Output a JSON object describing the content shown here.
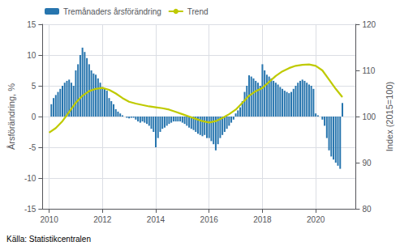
{
  "chart_data": {
    "type": "bar",
    "ylabel": "Årsförändring, %",
    "y2label": "Index (2015=100)",
    "annotation": "Källa: Statistikcentralen",
    "xlim": [
      2009.75,
      2021.5
    ],
    "xticks": [
      2010,
      2012,
      2014,
      2016,
      2018,
      2020
    ],
    "ylim": [
      -15,
      15
    ],
    "yticks": [
      -15,
      -10,
      -5,
      0,
      5,
      10,
      15
    ],
    "y2lim": [
      80,
      120
    ],
    "y2ticks": [
      80,
      90,
      100,
      110,
      120
    ],
    "grid": true,
    "legend": "upper left",
    "series": [
      {
        "name": "Tremånaders årsförändring",
        "type": "bar",
        "color": "#2775ae",
        "x": [
          2010.083,
          2010.167,
          2010.25,
          2010.333,
          2010.417,
          2010.5,
          2010.583,
          2010.667,
          2010.75,
          2010.833,
          2010.917,
          2011.0,
          2011.083,
          2011.167,
          2011.25,
          2011.333,
          2011.417,
          2011.5,
          2011.583,
          2011.667,
          2011.75,
          2011.833,
          2011.917,
          2012.0,
          2012.083,
          2012.167,
          2012.25,
          2012.333,
          2012.417,
          2012.5,
          2012.583,
          2012.667,
          2012.75,
          2012.833,
          2012.917,
          2013.0,
          2013.083,
          2013.167,
          2013.25,
          2013.333,
          2013.417,
          2013.5,
          2013.583,
          2013.667,
          2013.75,
          2013.833,
          2013.917,
          2014.0,
          2014.083,
          2014.167,
          2014.25,
          2014.333,
          2014.417,
          2014.5,
          2014.583,
          2014.667,
          2014.75,
          2014.833,
          2014.917,
          2015.0,
          2015.083,
          2015.167,
          2015.25,
          2015.333,
          2015.417,
          2015.5,
          2015.583,
          2015.667,
          2015.75,
          2015.833,
          2015.917,
          2016.0,
          2016.083,
          2016.167,
          2016.25,
          2016.333,
          2016.417,
          2016.5,
          2016.583,
          2016.667,
          2016.75,
          2016.833,
          2016.917,
          2017.0,
          2017.083,
          2017.167,
          2017.25,
          2017.333,
          2017.417,
          2017.5,
          2017.583,
          2017.667,
          2017.75,
          2017.833,
          2017.917,
          2018.0,
          2018.083,
          2018.167,
          2018.25,
          2018.333,
          2018.417,
          2018.5,
          2018.583,
          2018.667,
          2018.75,
          2018.833,
          2018.917,
          2019.0,
          2019.083,
          2019.167,
          2019.25,
          2019.333,
          2019.417,
          2019.5,
          2019.583,
          2019.667,
          2019.75,
          2019.833,
          2019.917,
          2020.0,
          2020.083,
          2020.167,
          2020.25,
          2020.333,
          2020.417,
          2020.5,
          2020.583,
          2020.667,
          2020.75,
          2020.833,
          2020.917,
          2021.0
        ],
        "values": [
          2.0,
          3.0,
          3.5,
          4.0,
          4.5,
          5.0,
          5.5,
          5.8,
          6.0,
          5.5,
          5.0,
          7.5,
          8.5,
          10.0,
          11.2,
          10.5,
          9.5,
          8.5,
          7.5,
          7.0,
          6.8,
          6.2,
          5.5,
          4.8,
          4.5,
          4.2,
          3.0,
          2.5,
          2.0,
          1.2,
          0.8,
          0.5,
          0.2,
          0.0,
          -0.2,
          -0.3,
          -0.2,
          -0.2,
          -0.5,
          -0.8,
          -1.0,
          -0.8,
          -1.0,
          -1.2,
          -1.5,
          -2.0,
          -2.5,
          -5.0,
          -3.5,
          -2.5,
          -2.0,
          -1.8,
          -1.5,
          -1.2,
          -1.0,
          -0.8,
          -0.8,
          -0.8,
          -0.8,
          -1.0,
          -1.2,
          -1.5,
          -1.8,
          -2.0,
          -2.2,
          -2.5,
          -2.8,
          -3.0,
          -3.2,
          -3.0,
          -3.5,
          -3.5,
          -4.0,
          -4.5,
          -5.5,
          -4.5,
          -3.5,
          -3.0,
          -2.5,
          -2.0,
          -1.5,
          -1.0,
          -0.5,
          0.5,
          1.0,
          1.5,
          2.5,
          4.0,
          5.0,
          6.7,
          6.5,
          6.2,
          5.8,
          5.5,
          5.0,
          8.5,
          7.5,
          6.8,
          6.5,
          6.2,
          5.8,
          5.5,
          5.2,
          4.8,
          4.5,
          4.2,
          4.0,
          3.8,
          4.0,
          4.5,
          5.0,
          5.5,
          5.8,
          6.0,
          5.8,
          5.5,
          5.2,
          5.0,
          4.5,
          0.5,
          0.2,
          0.0,
          -0.5,
          -1.5,
          -3.5,
          -5.5,
          -6.5,
          -7.0,
          -7.5,
          -8.0,
          -8.5,
          2.2
        ]
      },
      {
        "name": "Trend",
        "type": "line",
        "axis": "y2",
        "color": "#bfca00",
        "x": [
          2010.0,
          2010.25,
          2010.5,
          2010.75,
          2011.0,
          2011.25,
          2011.5,
          2011.75,
          2012.0,
          2012.25,
          2012.5,
          2012.75,
          2013.0,
          2013.25,
          2013.5,
          2013.75,
          2014.0,
          2014.25,
          2014.5,
          2014.75,
          2015.0,
          2015.25,
          2015.5,
          2015.75,
          2016.0,
          2016.25,
          2016.5,
          2016.75,
          2017.0,
          2017.25,
          2017.5,
          2017.75,
          2018.0,
          2018.25,
          2018.5,
          2018.75,
          2019.0,
          2019.25,
          2019.5,
          2019.75,
          2020.0,
          2020.25,
          2020.5,
          2020.75,
          2021.0
        ],
        "values": [
          96.5,
          97.5,
          99.0,
          101.0,
          103.0,
          104.5,
          105.5,
          106.0,
          106.2,
          105.8,
          105.0,
          104.0,
          103.2,
          102.8,
          102.5,
          102.2,
          102.0,
          101.8,
          101.5,
          101.0,
          100.5,
          100.0,
          99.5,
          99.0,
          98.7,
          99.0,
          99.7,
          100.5,
          101.5,
          103.0,
          104.5,
          105.5,
          106.2,
          107.5,
          108.8,
          109.8,
          110.5,
          111.0,
          111.2,
          111.3,
          111.0,
          110.0,
          108.0,
          106.0,
          104.2
        ]
      }
    ]
  }
}
